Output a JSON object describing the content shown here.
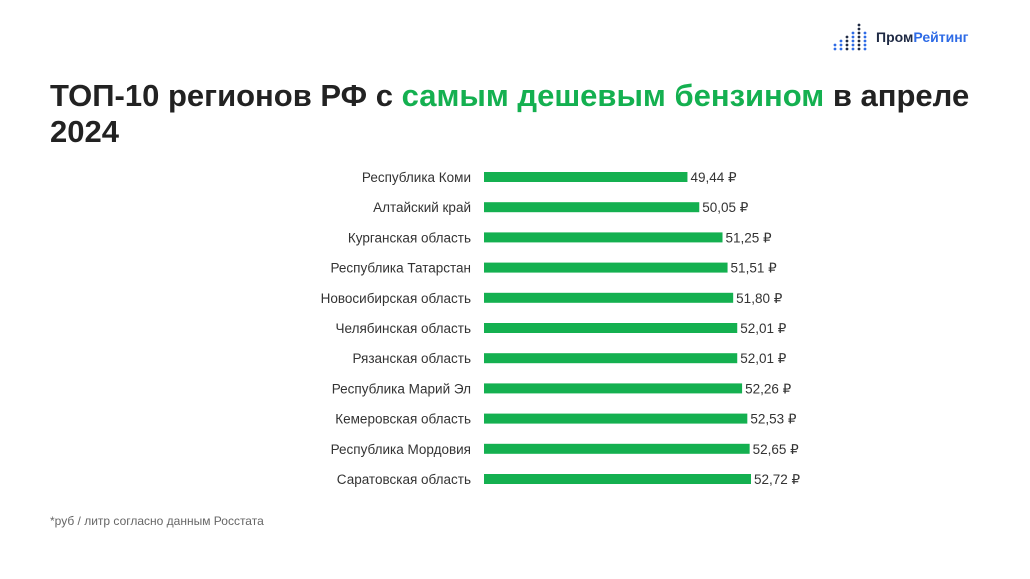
{
  "brand": {
    "name_part1": "Пром",
    "name_part2": "Рейтинг",
    "mark_icon": "bar-dots-icon",
    "colors": {
      "dark": "#1f2a44",
      "blue": "#2e6be6"
    }
  },
  "title": {
    "part1": "ТОП-10 регионов РФ с ",
    "highlight": "самым дешевым бензином",
    "part2": " в апреле 2024"
  },
  "chart_data": {
    "type": "bar",
    "orientation": "horizontal",
    "categories": [
      "Республика Коми",
      "Алтайский край",
      "Курганская область",
      "Республика Татарстан",
      "Новосибирская область",
      "Челябинская область",
      "Рязанская область",
      "Республика Марий Эл",
      "Кемеровская область",
      "Республика Мордовия",
      "Саратовская область"
    ],
    "values": [
      49.44,
      50.05,
      51.25,
      51.51,
      51.8,
      52.01,
      52.01,
      52.26,
      52.53,
      52.65,
      52.72
    ],
    "labels": [
      "49,44 ₽",
      "50,05 ₽",
      "51,25 ₽",
      "51,51 ₽",
      "51,80 ₽",
      "52,01 ₽",
      "52,01 ₽",
      "52,26 ₽",
      "52,53 ₽",
      "52,65 ₽",
      "52,72 ₽"
    ],
    "xlim": [
      38.94,
      52.72
    ],
    "bar_color": "#14b050",
    "grid": false,
    "legend": "none"
  },
  "footnote": "*руб / литр согласно данным Росстата"
}
